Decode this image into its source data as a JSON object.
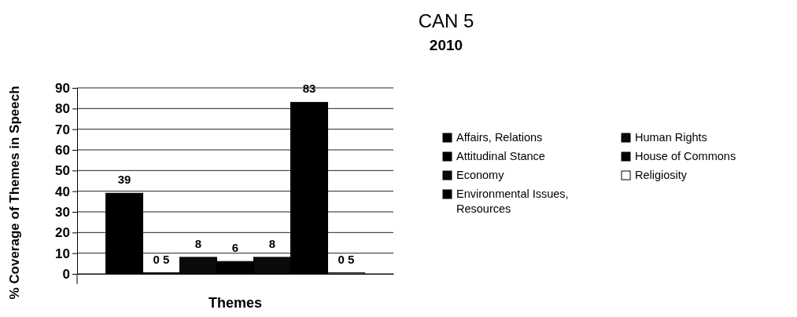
{
  "chart_data": {
    "type": "bar",
    "title": "CAN 5",
    "subtitle": "2010",
    "xlabel": "Themes",
    "ylabel": "% Coverage of Themes in Speech",
    "categories": [
      null
    ],
    "series": [
      {
        "name": "Affairs, Relations",
        "color": "#000000",
        "values": [
          39
        ],
        "value_labels": [
          "39"
        ]
      },
      {
        "name": "Attitudinal Stance",
        "color": "#000000",
        "values": [
          0.5
        ],
        "value_labels": [
          "0 5"
        ]
      },
      {
        "name": "Economy",
        "color": "#0a0a0a",
        "values": [
          8
        ],
        "value_labels": [
          "8"
        ]
      },
      {
        "name": "Environmental Issues, Resources",
        "color": "#000000",
        "values": [
          6
        ],
        "value_labels": [
          "6"
        ]
      },
      {
        "name": "Human Rights",
        "color": "#0a0a0a",
        "values": [
          8
        ],
        "value_labels": [
          "8"
        ]
      },
      {
        "name": "House of Commons",
        "color": "#000000",
        "values": [
          83
        ],
        "value_labels": [
          "83"
        ]
      },
      {
        "name": "Religiosity",
        "color": "#ffffff",
        "values": [
          0.5
        ],
        "value_labels": [
          "0 5"
        ]
      }
    ],
    "ylim": [
      0,
      90
    ],
    "yticks": [
      0,
      10,
      20,
      30,
      40,
      50,
      60,
      70,
      80,
      90
    ],
    "grid": "y",
    "legend": "right"
  }
}
